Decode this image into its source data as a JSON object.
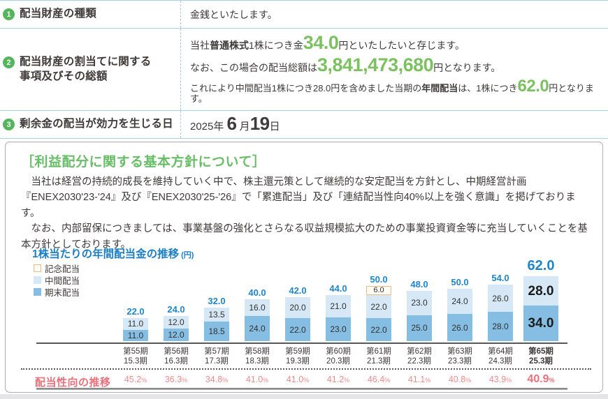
{
  "colors": {
    "accent_green": "#7cc161",
    "badge_green": "#54b65c",
    "heading_green": "#68bd67",
    "table_line_blue": "#a9cfe3",
    "chart_blue": "#1e86c9",
    "bar_interim": "#d6e8f5",
    "bar_yearend": "#85bde3",
    "bar_commemorative_border": "#f0ba81",
    "payout_pink": "#e8717c"
  },
  "table": {
    "rows": [
      {
        "badge": "1",
        "label": "配当財産の種類",
        "value_segs": [
          {
            "t": "金銭といたします。"
          }
        ]
      },
      {
        "badge": "2",
        "label_line1": "配当財産の割当てに関する",
        "label_line2": "事項及びその総額",
        "lines": [
          {
            "size": "lg",
            "segs": [
              {
                "t": "当社"
              },
              {
                "t": "普通株式",
                "s": "b"
              },
              {
                "t": "1株につき金"
              },
              {
                "t": "34.0",
                "s": "g"
              },
              {
                "t": "円といたしたいと存じます。"
              }
            ]
          },
          {
            "size": "lg",
            "segs": [
              {
                "t": "なお、この場合の配当総額は"
              },
              {
                "t": "3,841,473,680",
                "s": "g"
              },
              {
                "t": "円となります。"
              }
            ]
          },
          {
            "size": "sm",
            "segs": [
              {
                "t": "これにより中間配当1株につき28.0円を含めました当期の"
              },
              {
                "t": "年間配当",
                "s": "b"
              },
              {
                "t": "は、1株につき"
              },
              {
                "t": "62.0",
                "s": "g"
              },
              {
                "t": "円となります。"
              }
            ]
          }
        ]
      },
      {
        "badge": "3",
        "label": "剰余金の配当が効力を生じる日",
        "date_segs": [
          {
            "t": "2025年 "
          },
          {
            "t": "6",
            "s": "d"
          },
          {
            "t": " 月",
            "s": "t"
          },
          {
            "t": "19",
            "s": "d"
          },
          {
            "t": "日"
          }
        ]
      }
    ]
  },
  "policy_box": {
    "heading": "［利益配分に関する基本方針について］",
    "paragraphs": [
      "当社は経営の持続的成長を維持していく中で、株主還元策として継続的な安定配当を方針とし、中期経営計画『ENEX2030'23-'24』及び『ENEX2030'25-'26』で「累進配当」及び「連結配当性向40%以上を強く意識」を掲げております。",
      "なお、内部留保につきましては、事業基盤の強化とさらなる収益規模拡大のための事業投資資金等に充当していくことを基本方針としております。"
    ]
  },
  "chart_data": {
    "type": "bar",
    "stacked": true,
    "title": "1株当たりの年間配当金の推移",
    "title_unit": "(円)",
    "categories": [
      "第55期",
      "第56期",
      "第57期",
      "第58期",
      "第59期",
      "第60期",
      "第61期",
      "第62期",
      "第63期",
      "第64期",
      "第65期"
    ],
    "category_sub": [
      "15.3期",
      "16.3期",
      "17.3期",
      "18.3期",
      "19.3期",
      "20.3期",
      "21.3期",
      "22.3期",
      "23.3期",
      "24.3期",
      "25.3期"
    ],
    "series": [
      {
        "name": "記念配当",
        "key": "kinen",
        "color": "#fffdf6",
        "border": "#f0ba81",
        "values": [
          0,
          0,
          0,
          0,
          0,
          0,
          6.0,
          0,
          0,
          0,
          0
        ]
      },
      {
        "name": "中間配当",
        "key": "chukan",
        "color": "#d6e8f5",
        "border": null,
        "values": [
          11.0,
          12.0,
          13.5,
          16.0,
          20.0,
          21.0,
          22.0,
          23.0,
          24.0,
          26.0,
          28.0
        ]
      },
      {
        "name": "期末配当",
        "key": "kimatsu",
        "color": "#85bde3",
        "border": null,
        "values": [
          11.0,
          12.0,
          18.5,
          24.0,
          22.0,
          23.0,
          22.0,
          25.0,
          26.0,
          28.0,
          34.0
        ]
      }
    ],
    "totals": [
      22.0,
      24.0,
      32.0,
      40.0,
      42.0,
      44.0,
      50.0,
      48.0,
      50.0,
      54.0,
      62.0
    ],
    "ylim": [
      0,
      62
    ],
    "grid": false,
    "legend_position": "top-left",
    "payout_ratio_label": "配当性向の推移",
    "payout_ratios": [
      "45.2",
      "36.3",
      "34.8",
      "41.0",
      "41.0",
      "41.2",
      "46.4",
      "41.1",
      "40.8",
      "43.9",
      "40.9"
    ],
    "percent_sign": "%",
    "highlight_last_index": 10
  }
}
